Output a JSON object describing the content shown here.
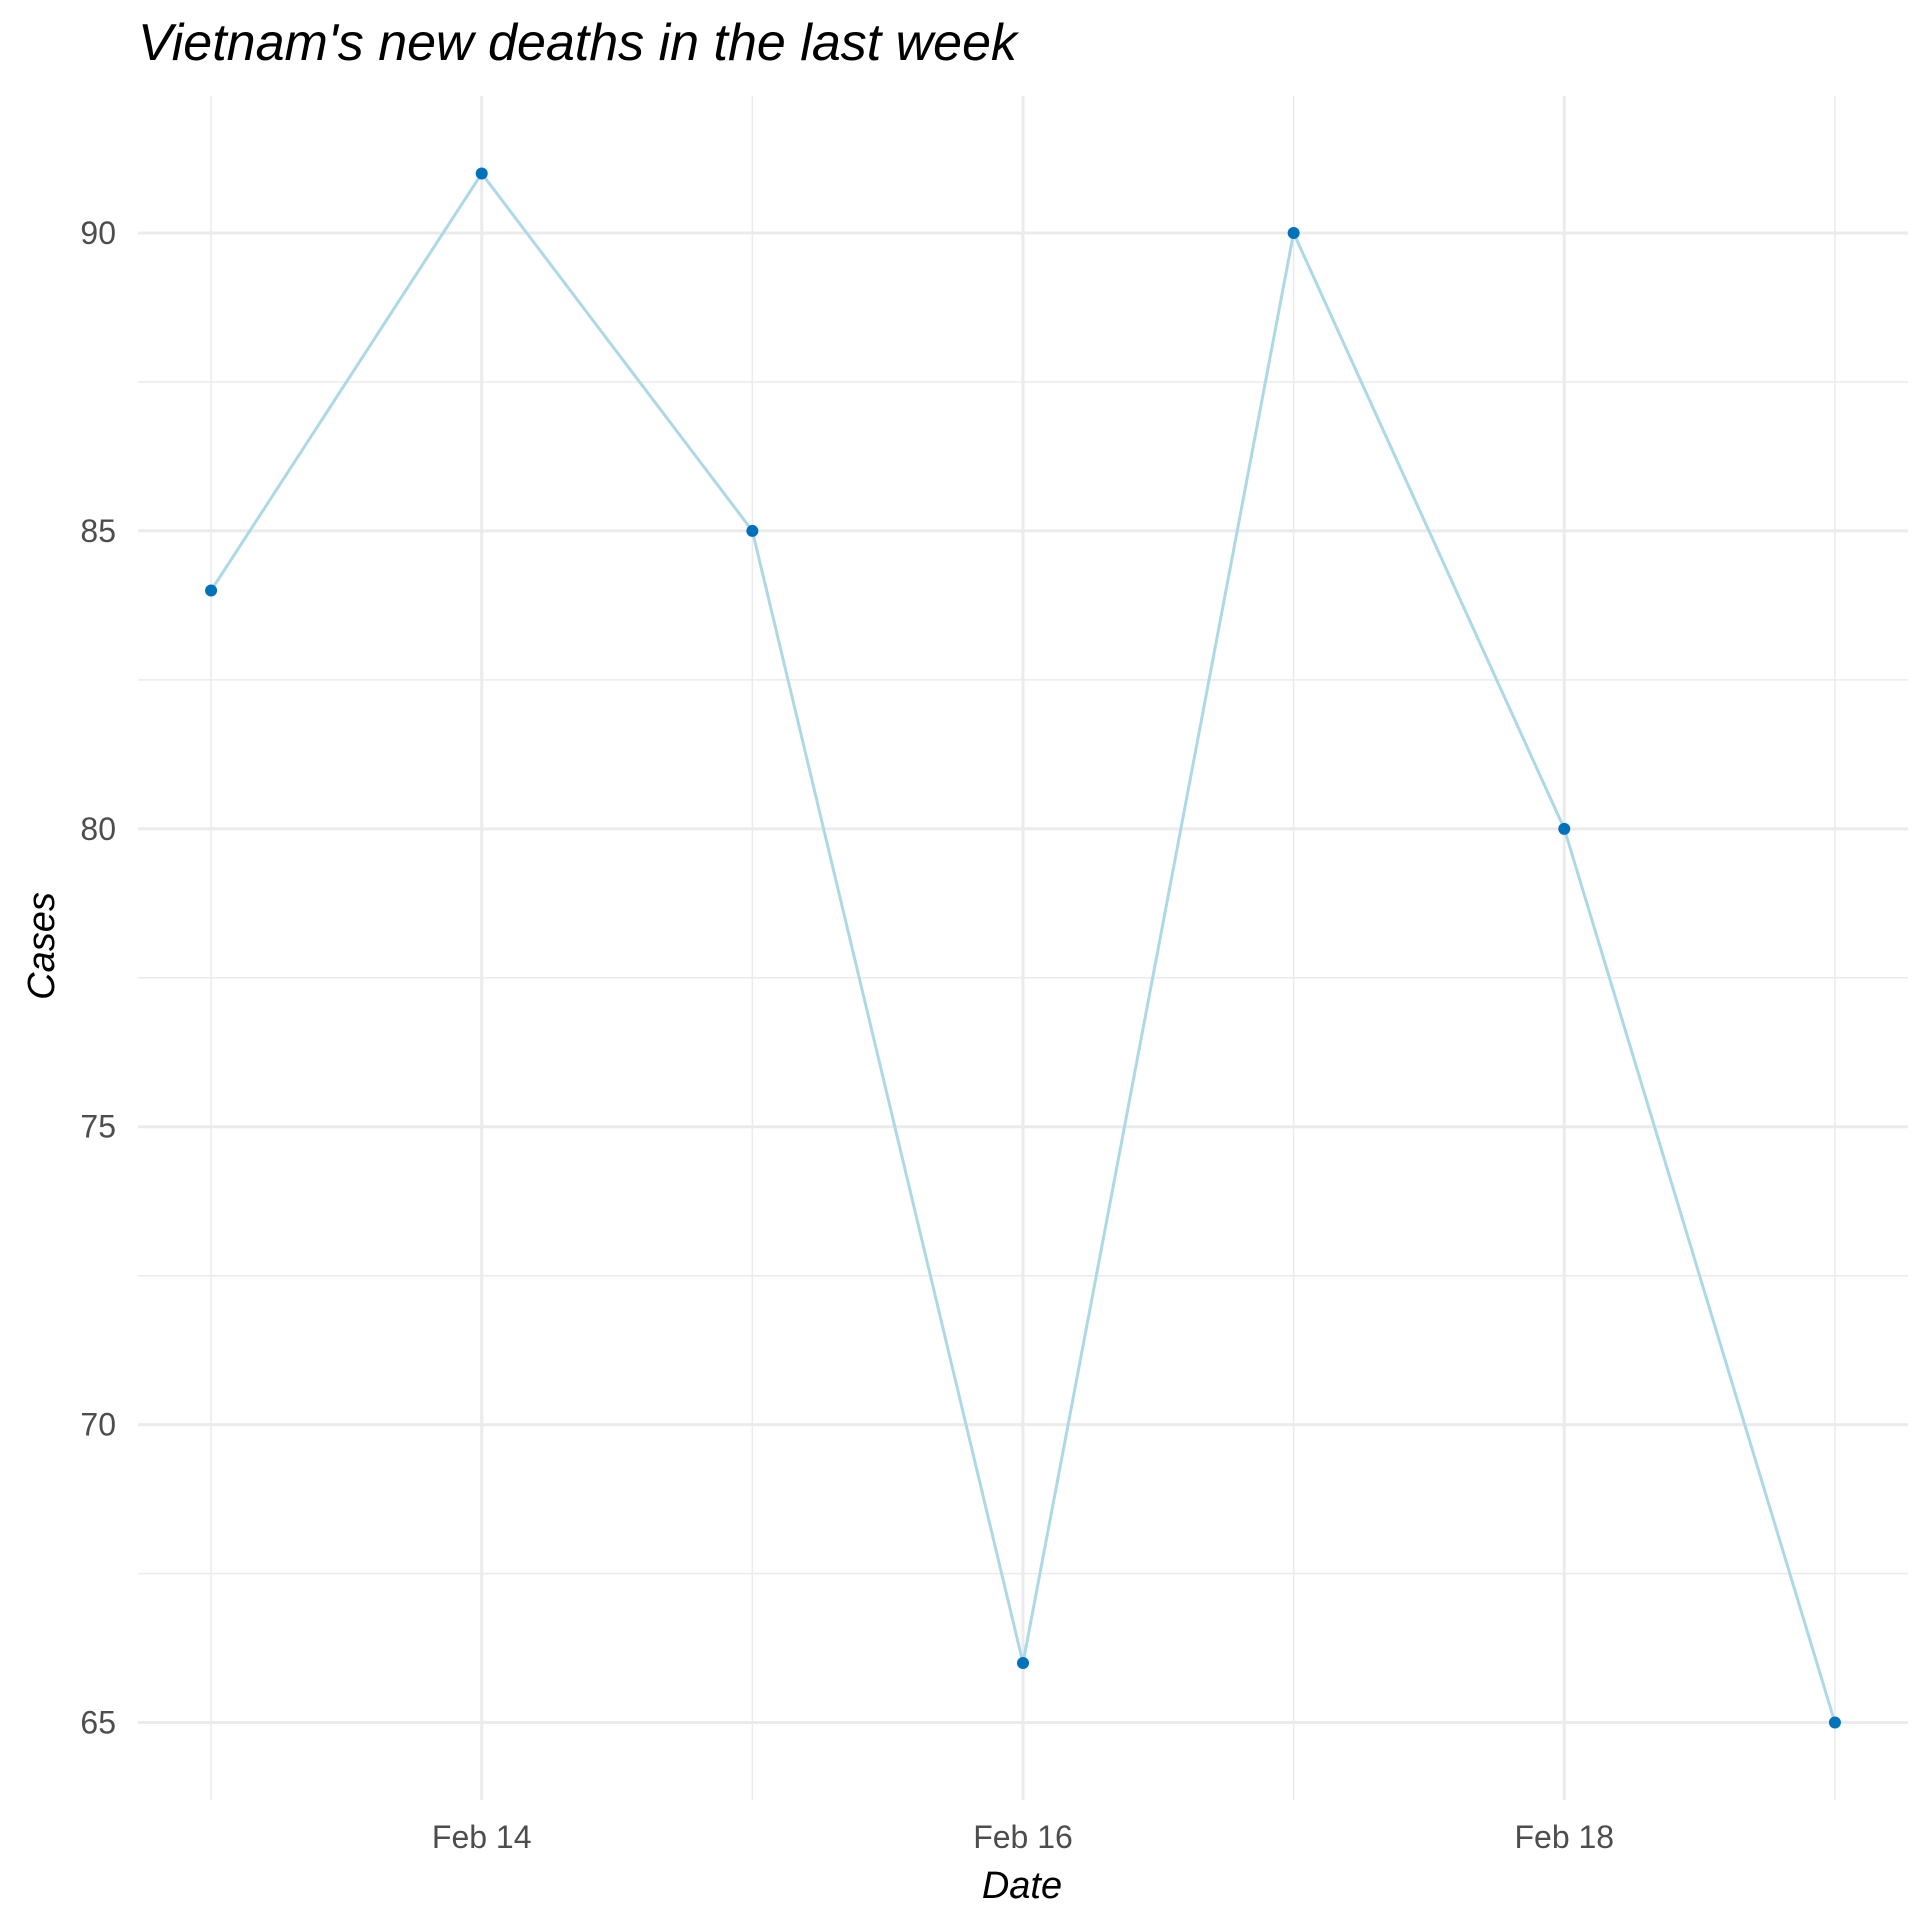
{
  "chart_data": {
    "type": "line",
    "title": "Vietnam's new deaths in the last week",
    "xlabel": "Date",
    "ylabel": "Cases",
    "x": [
      "2022-02-13",
      "2022-02-14",
      "2022-02-15",
      "2022-02-16",
      "2022-02-17",
      "2022-02-18",
      "2022-02-19"
    ],
    "series": [
      {
        "values": [
          84,
          91,
          85,
          66,
          90,
          80,
          65
        ]
      }
    ],
    "x_ticks": [
      {
        "date": "2022-02-14",
        "label": "Feb 14"
      },
      {
        "date": "2022-02-16",
        "label": "Feb 16"
      },
      {
        "date": "2022-02-18",
        "label": "Feb 18"
      }
    ],
    "y_ticks": [
      65,
      70,
      75,
      80,
      85,
      90
    ],
    "ylim": [
      63.7,
      92.3
    ],
    "grid": true,
    "legend": "none",
    "colors": {
      "line": "#add8e6",
      "point": "#0072bb",
      "grid": "#ebebeb",
      "tick_text": "#4d4d4d"
    }
  }
}
